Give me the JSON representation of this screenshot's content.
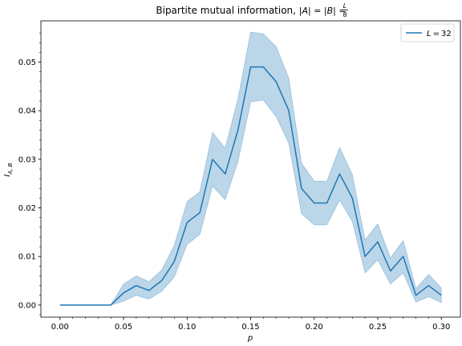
{
  "chart_data": {
    "type": "line",
    "title": "Bipartite mutual information, |A| = |B| = L/8",
    "title_main": "Bipartite mutual information, ",
    "title_expr": "|A| = |B| = ",
    "title_frac_num": "L",
    "title_frac_den": "8",
    "xlabel": "p",
    "ylabel": "I",
    "ylabel_sub": "A, B",
    "xlim": [
      -0.015,
      0.315
    ],
    "ylim": [
      -0.0025,
      0.0585
    ],
    "xticks": [
      0.0,
      0.05,
      0.1,
      0.15,
      0.2,
      0.25,
      0.3
    ],
    "xtick_labels": [
      "0.00",
      "0.05",
      "0.10",
      "0.15",
      "0.20",
      "0.25",
      "0.30"
    ],
    "yticks": [
      0.0,
      0.01,
      0.02,
      0.03,
      0.04,
      0.05
    ],
    "ytick_labels": [
      "0.00",
      "0.01",
      "0.02",
      "0.03",
      "0.04",
      "0.05"
    ],
    "grid": false,
    "legend_position": "top-right",
    "series": [
      {
        "name": "L = 32",
        "label_var": "L",
        "label_val": "32",
        "color": "#1f77b4",
        "band_color": "#1f77b4",
        "x": [
          0.0,
          0.01,
          0.02,
          0.03,
          0.04,
          0.05,
          0.06,
          0.07,
          0.08,
          0.09,
          0.1,
          0.11,
          0.12,
          0.13,
          0.14,
          0.15,
          0.16,
          0.17,
          0.18,
          0.19,
          0.2,
          0.21,
          0.22,
          0.23,
          0.24,
          0.25,
          0.26,
          0.27,
          0.28,
          0.29,
          0.3
        ],
        "y": [
          0.0,
          0.0,
          0.0,
          0.0,
          0.0,
          0.0025,
          0.004,
          0.003,
          0.005,
          0.009,
          0.017,
          0.019,
          0.03,
          0.027,
          0.036,
          0.049,
          0.049,
          0.046,
          0.04,
          0.024,
          0.021,
          0.021,
          0.027,
          0.022,
          0.01,
          0.013,
          0.007,
          0.01,
          0.002,
          0.004,
          0.002
        ],
        "lower": [
          0.0,
          0.0,
          0.0,
          0.0,
          0.0,
          0.0008,
          0.002,
          0.0012,
          0.0028,
          0.0058,
          0.0125,
          0.0145,
          0.0245,
          0.0217,
          0.0295,
          0.0418,
          0.0422,
          0.0388,
          0.0333,
          0.0188,
          0.0165,
          0.0165,
          0.0216,
          0.0172,
          0.0066,
          0.0093,
          0.0043,
          0.0066,
          0.0006,
          0.0017,
          0.0005
        ],
        "upper": [
          0.0,
          0.0,
          0.0,
          0.0,
          0.0,
          0.0043,
          0.006,
          0.0048,
          0.0072,
          0.0123,
          0.0213,
          0.0233,
          0.0355,
          0.0323,
          0.0424,
          0.0562,
          0.0558,
          0.0532,
          0.0467,
          0.0292,
          0.0255,
          0.0255,
          0.0324,
          0.0268,
          0.0134,
          0.0167,
          0.0097,
          0.0133,
          0.0034,
          0.0063,
          0.0035
        ]
      }
    ]
  }
}
